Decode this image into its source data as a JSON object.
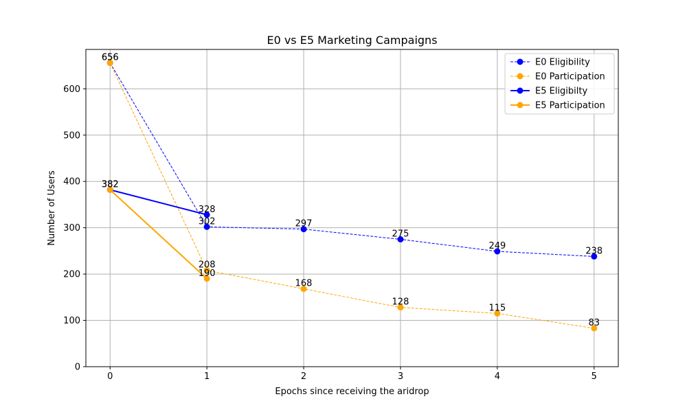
{
  "chart_data": {
    "type": "line",
    "title": "E0 vs E5 Marketing Campaigns",
    "xlabel": "Epochs since receiving the aridrop",
    "ylabel": "Number of Users",
    "xlim": [
      -0.25,
      5.25
    ],
    "ylim": [
      0,
      685
    ],
    "x_ticks": [
      0,
      1,
      2,
      3,
      4,
      5
    ],
    "y_ticks": [
      0,
      100,
      200,
      300,
      400,
      500,
      600
    ],
    "grid": true,
    "legend_position": "top-right",
    "series": [
      {
        "name": "E0 Eligibility",
        "color": "#0000ff",
        "style": "dashed",
        "x": [
          0,
          1,
          2,
          3,
          4,
          5
        ],
        "values": [
          656,
          302,
          297,
          275,
          249,
          238
        ]
      },
      {
        "name": "E0 Participation",
        "color": "#ffa500",
        "style": "dashed",
        "x": [
          0,
          1,
          2,
          3,
          4,
          5
        ],
        "values": [
          656,
          208,
          168,
          128,
          115,
          83
        ]
      },
      {
        "name": "E5 Eligibilty",
        "color": "#0000ff",
        "style": "solid",
        "x": [
          0,
          1
        ],
        "values": [
          382,
          328
        ]
      },
      {
        "name": "E5 Participation",
        "color": "#ffa500",
        "style": "solid",
        "x": [
          0,
          1
        ],
        "values": [
          382,
          190
        ]
      }
    ]
  }
}
